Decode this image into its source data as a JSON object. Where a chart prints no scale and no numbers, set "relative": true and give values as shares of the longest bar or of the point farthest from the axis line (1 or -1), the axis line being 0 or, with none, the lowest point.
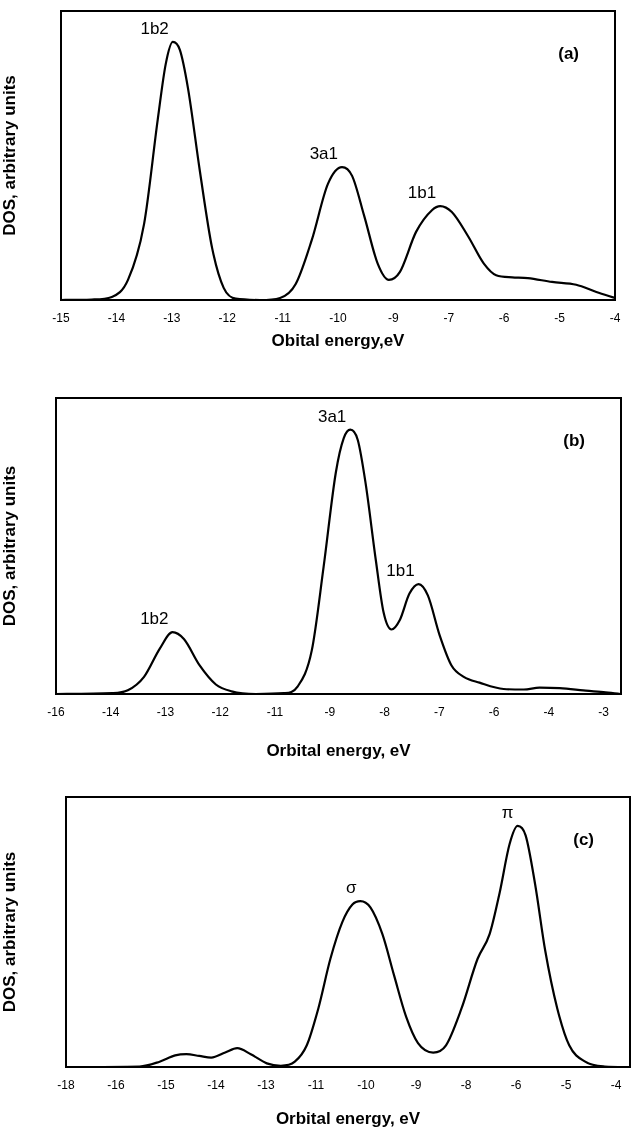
{
  "chart_data": [
    {
      "type": "line",
      "relative": true,
      "xlabel": "Obital energy,eV",
      "ylabel": "DOS, arbitrary units",
      "tick_labels": "x",
      "color": "#000000",
      "xlim": [
        -15.15,
        -4.15
      ],
      "xticks": [
        {
          "value": -15.15,
          "label": "-15"
        },
        {
          "value": -14.05,
          "label": "-14"
        },
        {
          "value": -12.95,
          "label": "-13"
        },
        {
          "value": -11.85,
          "label": "-12"
        },
        {
          "value": -10.75,
          "label": "-11"
        },
        {
          "value": -9.65,
          "label": "-10"
        },
        {
          "value": -8.55,
          "label": "-9"
        },
        {
          "value": -7.45,
          "label": "-7"
        },
        {
          "value": -6.35,
          "label": "-6"
        },
        {
          "value": -5.25,
          "label": "-5"
        },
        {
          "value": -4.15,
          "label": "-4"
        }
      ],
      "x": [
        -15.15,
        -14.54,
        -14.14,
        -13.82,
        -13.5,
        -13.23,
        -13.07,
        -12.93,
        -12.79,
        -12.63,
        -12.39,
        -12.15,
        -11.92,
        -11.68,
        -11.2,
        -10.8,
        -10.49,
        -10.17,
        -9.85,
        -9.57,
        -9.37,
        -9.13,
        -8.86,
        -8.64,
        -8.42,
        -8.1,
        -7.78,
        -7.62,
        -7.39,
        -7.07,
        -6.75,
        -6.51,
        -6.19,
        -5.88,
        -5.4,
        -4.92,
        -4.52,
        -4.15
      ],
      "values": [
        0,
        0.002,
        0.012,
        0.078,
        0.295,
        0.698,
        0.915,
        1,
        0.969,
        0.822,
        0.496,
        0.202,
        0.047,
        0.005,
        0,
        0.008,
        0.062,
        0.233,
        0.45,
        0.515,
        0.481,
        0.326,
        0.14,
        0.078,
        0.109,
        0.264,
        0.349,
        0.364,
        0.341,
        0.248,
        0.14,
        0.096,
        0.088,
        0.085,
        0.07,
        0.059,
        0.031,
        0.008
      ],
      "annotations": [
        {
          "text": "1b2",
          "x": -12.93,
          "y": 1
        },
        {
          "text": "3a1",
          "x": -9.57,
          "y": 0.515
        },
        {
          "text": "1b1",
          "x": -7.62,
          "y": 0.364
        },
        "(a)"
      ]
    },
    {
      "type": "line",
      "relative": true,
      "xlabel": "Orbital energy, eV",
      "ylabel": "DOS, arbitrary units",
      "tick_labels": "x",
      "color": "#000000",
      "xlim": [
        -15.75,
        -2.85
      ],
      "xticks": [
        {
          "value": -15.75,
          "label": "-16"
        },
        {
          "value": -14.5,
          "label": "-14"
        },
        {
          "value": -13.25,
          "label": "-13"
        },
        {
          "value": -12,
          "label": "-12"
        },
        {
          "value": -10.75,
          "label": "-11"
        },
        {
          "value": -9.5,
          "label": "-9"
        },
        {
          "value": -8.25,
          "label": "-8"
        },
        {
          "value": -7,
          "label": "-7"
        },
        {
          "value": -5.75,
          "label": "-6"
        },
        {
          "value": -4.5,
          "label": "-4"
        },
        {
          "value": -3.25,
          "label": "-3"
        }
      ],
      "x": [
        -15.75,
        -14.47,
        -14.11,
        -13.74,
        -13.38,
        -13.09,
        -12.83,
        -12.47,
        -12.1,
        -11.74,
        -11.19,
        -10.55,
        -10.23,
        -9.91,
        -9.64,
        -9.36,
        -9.18,
        -9.03,
        -8.86,
        -8.68,
        -8.45,
        -8.27,
        -8.09,
        -7.9,
        -7.68,
        -7.47,
        -7.26,
        -6.99,
        -6.72,
        -6.44,
        -6.08,
        -5.53,
        -5.07,
        -4.71,
        -4.25,
        -3.71,
        -3.25,
        -2.87
      ],
      "values": [
        0,
        0.003,
        0.014,
        0.065,
        0.172,
        0.234,
        0.208,
        0.108,
        0.036,
        0.01,
        0,
        0.003,
        0.029,
        0.165,
        0.481,
        0.839,
        0.968,
        1,
        0.961,
        0.796,
        0.509,
        0.308,
        0.244,
        0.28,
        0.38,
        0.416,
        0.373,
        0.222,
        0.108,
        0.065,
        0.043,
        0.019,
        0.017,
        0.024,
        0.022,
        0.014,
        0.007,
        0
      ],
      "annotations": [
        {
          "text": "1b2",
          "x": -13.09,
          "y": 0.234
        },
        {
          "text": "3a1",
          "x": -9.03,
          "y": 1
        },
        {
          "text": "1b1",
          "x": -7.47,
          "y": 0.416
        },
        "(b)"
      ]
    },
    {
      "type": "line",
      "relative": true,
      "xlabel": "Orbital energy, eV",
      "ylabel": "DOS, arbitrary units",
      "tick_labels": "x",
      "color": "#000000",
      "xlim": [
        -17.75,
        -3.65
      ],
      "xticks": [
        {
          "value": -17.75,
          "label": "-18"
        },
        {
          "value": -16.5,
          "label": "-16"
        },
        {
          "value": -15.25,
          "label": "-15"
        },
        {
          "value": -14,
          "label": "-14"
        },
        {
          "value": -12.75,
          "label": "-13"
        },
        {
          "value": -11.5,
          "label": "-11"
        },
        {
          "value": -10.25,
          "label": "-10"
        },
        {
          "value": -9,
          "label": "-9"
        },
        {
          "value": -7.75,
          "label": "-8"
        },
        {
          "value": -6.5,
          "label": "-6"
        },
        {
          "value": -5.25,
          "label": "-5"
        },
        {
          "value": -4,
          "label": "-4"
        }
      ],
      "x": [
        -17.75,
        -15.91,
        -15.41,
        -15.02,
        -14.74,
        -14.42,
        -14.12,
        -13.77,
        -13.47,
        -13.13,
        -12.73,
        -12.38,
        -12.03,
        -11.73,
        -11.44,
        -11.14,
        -10.84,
        -10.59,
        -10.39,
        -10.14,
        -9.84,
        -9.55,
        -9.25,
        -8.95,
        -8.57,
        -8.25,
        -7.86,
        -7.46,
        -7.16,
        -6.91,
        -6.66,
        -6.46,
        -6.26,
        -6.02,
        -5.77,
        -5.47,
        -5.17,
        -4.77,
        -4.28,
        -3.8,
        -3.65
      ],
      "values": [
        0,
        0.002,
        0.022,
        0.048,
        0.053,
        0.046,
        0.039,
        0.06,
        0.078,
        0.053,
        0.015,
        0.005,
        0.022,
        0.09,
        0.244,
        0.449,
        0.602,
        0.674,
        0.688,
        0.662,
        0.551,
        0.381,
        0.21,
        0.099,
        0.06,
        0.09,
        0.244,
        0.449,
        0.551,
        0.722,
        0.925,
        1,
        0.961,
        0.756,
        0.483,
        0.244,
        0.09,
        0.022,
        0.002,
        0,
        0
      ],
      "annotations": [
        {
          "text": "σ",
          "x": -10.39,
          "y": 0.688
        },
        {
          "text": "π",
          "x": -6.46,
          "y": 1
        },
        "(c)"
      ]
    }
  ]
}
